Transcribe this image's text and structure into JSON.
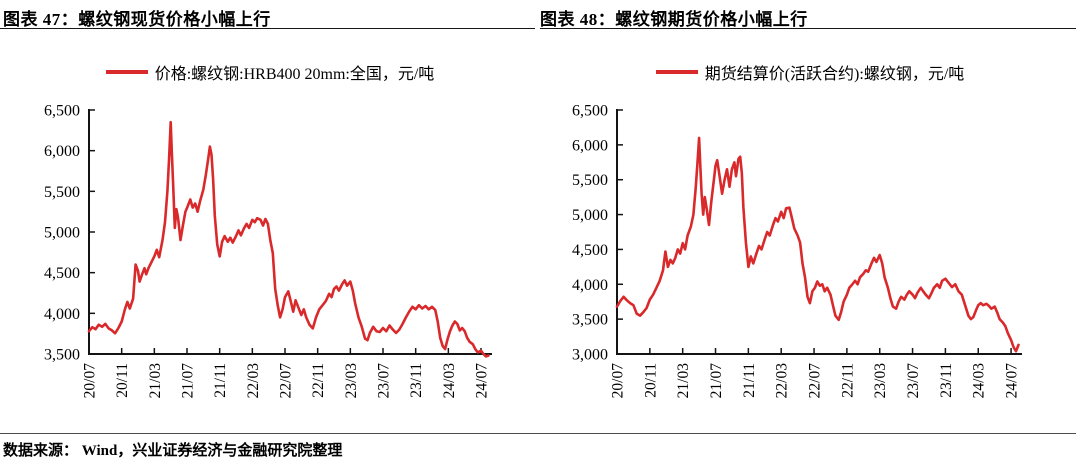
{
  "colors": {
    "series_red": "#d9292b",
    "axis_black": "#141414",
    "rule_gray": "#4d4d4d",
    "background": "#ffffff"
  },
  "footer": {
    "label": "数据来源：",
    "text": " Wind，兴业证券经济与金融研究院整理"
  },
  "chart_data": [
    {
      "type": "line",
      "title": "图表 47：螺纹钢现货价格小幅上行",
      "legend": "价格:螺纹钢:HRB400 20mm:全国，元/吨",
      "series_color": "#d9292b",
      "ylim": [
        3500,
        6500
      ],
      "ytick_step": 500,
      "xtick_every": 4,
      "grid": false,
      "legend_position": "top-center",
      "y_tick_labels": [
        "6,500",
        "6,000",
        "5,500",
        "5,000",
        "4,500",
        "4,000",
        "3,500"
      ],
      "x_tick_labels": [
        "20/07",
        "20/11",
        "21/03",
        "21/07",
        "21/11",
        "22/03",
        "22/07",
        "22/11",
        "23/03",
        "23/07",
        "23/11",
        "24/03",
        "24/07"
      ],
      "x_unit": "month index from 2020/07",
      "points": [
        [
          0,
          3780
        ],
        [
          0.4,
          3830
        ],
        [
          0.8,
          3805
        ],
        [
          1.2,
          3860
        ],
        [
          1.6,
          3835
        ],
        [
          2,
          3870
        ],
        [
          2.4,
          3815
        ],
        [
          2.8,
          3790
        ],
        [
          3.2,
          3755
        ],
        [
          3.6,
          3820
        ],
        [
          4,
          3900
        ],
        [
          4.4,
          4050
        ],
        [
          4.7,
          4140
        ],
        [
          5,
          4060
        ],
        [
          5.4,
          4180
        ],
        [
          5.7,
          4600
        ],
        [
          6,
          4520
        ],
        [
          6.2,
          4390
        ],
        [
          6.5,
          4480
        ],
        [
          6.8,
          4555
        ],
        [
          7,
          4480
        ],
        [
          7.3,
          4560
        ],
        [
          7.6,
          4620
        ],
        [
          8,
          4700
        ],
        [
          8.3,
          4780
        ],
        [
          8.6,
          4690
        ],
        [
          9,
          4900
        ],
        [
          9.3,
          5120
        ],
        [
          9.6,
          5500
        ],
        [
          9.8,
          5880
        ],
        [
          10,
          6350
        ],
        [
          10.15,
          5950
        ],
        [
          10.3,
          5600
        ],
        [
          10.5,
          5050
        ],
        [
          10.7,
          5280
        ],
        [
          10.9,
          5180
        ],
        [
          11.2,
          4900
        ],
        [
          11.5,
          5080
        ],
        [
          11.8,
          5250
        ],
        [
          12.1,
          5320
        ],
        [
          12.4,
          5400
        ],
        [
          12.7,
          5300
        ],
        [
          13,
          5350
        ],
        [
          13.3,
          5250
        ],
        [
          13.6,
          5380
        ],
        [
          14,
          5520
        ],
        [
          14.3,
          5700
        ],
        [
          14.6,
          5900
        ],
        [
          14.8,
          6050
        ],
        [
          15,
          5950
        ],
        [
          15.2,
          5650
        ],
        [
          15.4,
          5200
        ],
        [
          15.7,
          4850
        ],
        [
          16,
          4700
        ],
        [
          16.3,
          4880
        ],
        [
          16.6,
          4950
        ],
        [
          17,
          4880
        ],
        [
          17.3,
          4930
        ],
        [
          17.6,
          4870
        ],
        [
          18,
          4950
        ],
        [
          18.3,
          5020
        ],
        [
          18.6,
          4960
        ],
        [
          19,
          5050
        ],
        [
          19.3,
          5100
        ],
        [
          19.6,
          5050
        ],
        [
          20,
          5150
        ],
        [
          20.3,
          5120
        ],
        [
          20.6,
          5170
        ],
        [
          21,
          5150
        ],
        [
          21.3,
          5080
        ],
        [
          21.6,
          5160
        ],
        [
          21.9,
          5100
        ],
        [
          22.2,
          4900
        ],
        [
          22.5,
          4740
        ],
        [
          22.8,
          4300
        ],
        [
          23.1,
          4100
        ],
        [
          23.4,
          3950
        ],
        [
          23.7,
          4050
        ],
        [
          24,
          4200
        ],
        [
          24.4,
          4270
        ],
        [
          24.7,
          4150
        ],
        [
          25,
          4020
        ],
        [
          25.3,
          4160
        ],
        [
          25.6,
          4080
        ],
        [
          26,
          3980
        ],
        [
          26.3,
          4050
        ],
        [
          26.6,
          3950
        ],
        [
          27,
          3860
        ],
        [
          27.4,
          3815
        ],
        [
          27.8,
          3950
        ],
        [
          28.2,
          4050
        ],
        [
          28.6,
          4100
        ],
        [
          29,
          4150
        ],
        [
          29.4,
          4240
        ],
        [
          29.7,
          4200
        ],
        [
          30,
          4300
        ],
        [
          30.3,
          4330
        ],
        [
          30.6,
          4280
        ],
        [
          31,
          4360
        ],
        [
          31.3,
          4405
        ],
        [
          31.6,
          4340
        ],
        [
          32,
          4390
        ],
        [
          32.3,
          4280
        ],
        [
          32.6,
          4120
        ],
        [
          33,
          3950
        ],
        [
          33.4,
          3835
        ],
        [
          33.8,
          3690
        ],
        [
          34.1,
          3670
        ],
        [
          34.4,
          3760
        ],
        [
          34.8,
          3835
        ],
        [
          35.2,
          3780
        ],
        [
          35.6,
          3770
        ],
        [
          36,
          3820
        ],
        [
          36.4,
          3780
        ],
        [
          36.8,
          3850
        ],
        [
          37.2,
          3800
        ],
        [
          37.6,
          3760
        ],
        [
          38,
          3800
        ],
        [
          38.4,
          3870
        ],
        [
          38.8,
          3950
        ],
        [
          39.2,
          4020
        ],
        [
          39.6,
          4080
        ],
        [
          40,
          4050
        ],
        [
          40.4,
          4100
        ],
        [
          40.8,
          4060
        ],
        [
          41.2,
          4090
        ],
        [
          41.6,
          4050
        ],
        [
          42,
          4080
        ],
        [
          42.4,
          4040
        ],
        [
          42.7,
          3900
        ],
        [
          43,
          3700
        ],
        [
          43.3,
          3600
        ],
        [
          43.6,
          3560
        ],
        [
          43.9,
          3680
        ],
        [
          44.2,
          3780
        ],
        [
          44.5,
          3850
        ],
        [
          44.8,
          3900
        ],
        [
          45.1,
          3870
        ],
        [
          45.4,
          3790
        ],
        [
          45.7,
          3820
        ],
        [
          46,
          3780
        ],
        [
          46.3,
          3700
        ],
        [
          46.6,
          3650
        ],
        [
          47,
          3620
        ],
        [
          47.3,
          3560
        ],
        [
          47.6,
          3520
        ],
        [
          48,
          3540
        ],
        [
          48.3,
          3500
        ],
        [
          48.6,
          3470
        ],
        [
          48.9,
          3480
        ]
      ]
    },
    {
      "type": "line",
      "title": "图表 48：螺纹钢期货价格小幅上行",
      "legend": "期货结算价(活跃合约):螺纹钢，元/吨",
      "series_color": "#d9292b",
      "ylim": [
        3000,
        6500
      ],
      "ytick_step": 500,
      "xtick_every": 4,
      "grid": false,
      "legend_position": "top-center",
      "y_tick_labels": [
        "6,500",
        "6,000",
        "5,500",
        "5,000",
        "4,500",
        "4,000",
        "3,500",
        "3,000"
      ],
      "x_tick_labels": [
        "20/07",
        "20/11",
        "21/03",
        "21/07",
        "21/11",
        "22/03",
        "22/07",
        "22/11",
        "23/03",
        "23/07",
        "23/11",
        "24/03",
        "24/07"
      ],
      "x_unit": "month index from 2020/07",
      "points": [
        [
          0,
          3680
        ],
        [
          0.4,
          3760
        ],
        [
          0.8,
          3820
        ],
        [
          1.2,
          3770
        ],
        [
          1.6,
          3730
        ],
        [
          2,
          3700
        ],
        [
          2.4,
          3580
        ],
        [
          2.8,
          3550
        ],
        [
          3.2,
          3600
        ],
        [
          3.6,
          3660
        ],
        [
          4,
          3780
        ],
        [
          4.4,
          3850
        ],
        [
          4.8,
          3950
        ],
        [
          5.2,
          4050
        ],
        [
          5.6,
          4200
        ],
        [
          5.9,
          4470
        ],
        [
          6.2,
          4250
        ],
        [
          6.5,
          4350
        ],
        [
          6.8,
          4300
        ],
        [
          7.1,
          4380
        ],
        [
          7.4,
          4500
        ],
        [
          7.7,
          4440
        ],
        [
          8,
          4590
        ],
        [
          8.3,
          4500
        ],
        [
          8.6,
          4700
        ],
        [
          9,
          4830
        ],
        [
          9.3,
          5000
        ],
        [
          9.6,
          5400
        ],
        [
          9.8,
          5750
        ],
        [
          10,
          6100
        ],
        [
          10.15,
          5700
        ],
        [
          10.3,
          5300
        ],
        [
          10.5,
          5000
        ],
        [
          10.7,
          5250
        ],
        [
          10.9,
          5100
        ],
        [
          11.2,
          4850
        ],
        [
          11.5,
          5200
        ],
        [
          11.8,
          5500
        ],
        [
          12,
          5700
        ],
        [
          12.2,
          5780
        ],
        [
          12.5,
          5550
        ],
        [
          12.8,
          5300
        ],
        [
          13.1,
          5500
        ],
        [
          13.4,
          5650
        ],
        [
          13.7,
          5400
        ],
        [
          14,
          5650
        ],
        [
          14.3,
          5750
        ],
        [
          14.5,
          5550
        ],
        [
          14.8,
          5800
        ],
        [
          15,
          5830
        ],
        [
          15.2,
          5600
        ],
        [
          15.4,
          5100
        ],
        [
          15.7,
          4600
        ],
        [
          16,
          4250
        ],
        [
          16.3,
          4400
        ],
        [
          16.6,
          4300
        ],
        [
          17,
          4450
        ],
        [
          17.3,
          4550
        ],
        [
          17.6,
          4500
        ],
        [
          18,
          4650
        ],
        [
          18.3,
          4750
        ],
        [
          18.6,
          4700
        ],
        [
          19,
          4850
        ],
        [
          19.3,
          4950
        ],
        [
          19.6,
          4900
        ],
        [
          20,
          5040
        ],
        [
          20.3,
          4950
        ],
        [
          20.6,
          5090
        ],
        [
          21,
          5100
        ],
        [
          21.3,
          4950
        ],
        [
          21.6,
          4800
        ],
        [
          22,
          4700
        ],
        [
          22.3,
          4600
        ],
        [
          22.6,
          4300
        ],
        [
          22.9,
          4100
        ],
        [
          23.2,
          3820
        ],
        [
          23.5,
          3730
        ],
        [
          23.8,
          3900
        ],
        [
          24.1,
          3950
        ],
        [
          24.4,
          4040
        ],
        [
          24.7,
          3980
        ],
        [
          25,
          4000
        ],
        [
          25.3,
          3900
        ],
        [
          25.6,
          3950
        ],
        [
          26,
          3850
        ],
        [
          26.3,
          3700
        ],
        [
          26.6,
          3550
        ],
        [
          27,
          3490
        ],
        [
          27.3,
          3600
        ],
        [
          27.6,
          3750
        ],
        [
          28,
          3850
        ],
        [
          28.3,
          3950
        ],
        [
          28.6,
          3990
        ],
        [
          29,
          4050
        ],
        [
          29.3,
          4000
        ],
        [
          29.6,
          4100
        ],
        [
          30,
          4150
        ],
        [
          30.3,
          4200
        ],
        [
          30.6,
          4180
        ],
        [
          31,
          4300
        ],
        [
          31.3,
          4380
        ],
        [
          31.6,
          4320
        ],
        [
          32,
          4420
        ],
        [
          32.3,
          4300
        ],
        [
          32.6,
          4100
        ],
        [
          33,
          3950
        ],
        [
          33.3,
          3800
        ],
        [
          33.6,
          3680
        ],
        [
          34,
          3650
        ],
        [
          34.3,
          3750
        ],
        [
          34.6,
          3820
        ],
        [
          35,
          3780
        ],
        [
          35.3,
          3850
        ],
        [
          35.6,
          3900
        ],
        [
          36,
          3850
        ],
        [
          36.3,
          3800
        ],
        [
          36.6,
          3880
        ],
        [
          37,
          3950
        ],
        [
          37.3,
          3900
        ],
        [
          37.6,
          3850
        ],
        [
          38,
          3800
        ],
        [
          38.3,
          3870
        ],
        [
          38.6,
          3950
        ],
        [
          39,
          4000
        ],
        [
          39.3,
          3950
        ],
        [
          39.6,
          4050
        ],
        [
          40,
          4080
        ],
        [
          40.4,
          4020
        ],
        [
          40.8,
          3960
        ],
        [
          41.2,
          4000
        ],
        [
          41.6,
          3900
        ],
        [
          42,
          3850
        ],
        [
          42.4,
          3700
        ],
        [
          42.8,
          3550
        ],
        [
          43.1,
          3500
        ],
        [
          43.4,
          3530
        ],
        [
          43.7,
          3620
        ],
        [
          44,
          3700
        ],
        [
          44.3,
          3730
        ],
        [
          44.6,
          3700
        ],
        [
          45,
          3720
        ],
        [
          45.3,
          3690
        ],
        [
          45.6,
          3650
        ],
        [
          46,
          3680
        ],
        [
          46.3,
          3600
        ],
        [
          46.6,
          3500
        ],
        [
          47,
          3450
        ],
        [
          47.3,
          3400
        ],
        [
          47.6,
          3300
        ],
        [
          48,
          3200
        ],
        [
          48.3,
          3100
        ],
        [
          48.6,
          3040
        ],
        [
          48.9,
          3130
        ]
      ]
    }
  ]
}
